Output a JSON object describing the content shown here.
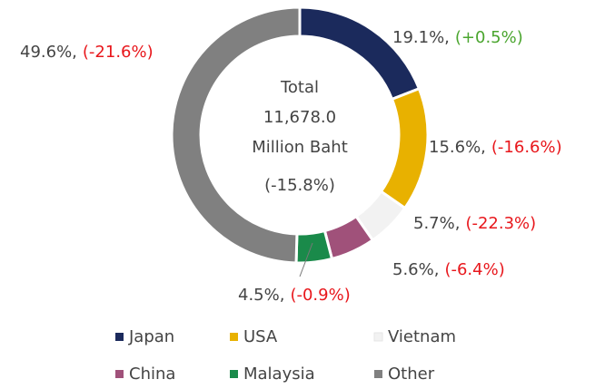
{
  "chart_data": {
    "type": "donut",
    "categories": [
      "Japan",
      "USA",
      "Vietnam",
      "China",
      "Malaysia",
      "Other"
    ],
    "values": [
      19.1,
      15.6,
      5.7,
      5.6,
      4.5,
      49.6
    ],
    "value_labels": [
      "19.1%,",
      "15.6%,",
      "5.7%,",
      "5.6%,",
      "4.5%,",
      "49.6%,"
    ],
    "changes": [
      "(+0.5%)",
      "(-16.6%)",
      "(-22.3%)",
      "(-6.4%)",
      "(-0.9%)",
      "(-21.6%)"
    ],
    "change_colors": [
      "#4aa52e",
      "#e8171c",
      "#e8171c",
      "#e8171c",
      "#e8171c",
      "#e8171c"
    ],
    "colors": [
      "#1b2a5c",
      "#e8b100",
      "#f2f2f2",
      "#a0517a",
      "#1a8a4a",
      "#808080"
    ],
    "center": {
      "lines": [
        "Total",
        "11,678.0",
        "Million Baht"
      ],
      "change": "(-15.8%)",
      "change_color": "#e8171c"
    },
    "legend": "bottom"
  }
}
